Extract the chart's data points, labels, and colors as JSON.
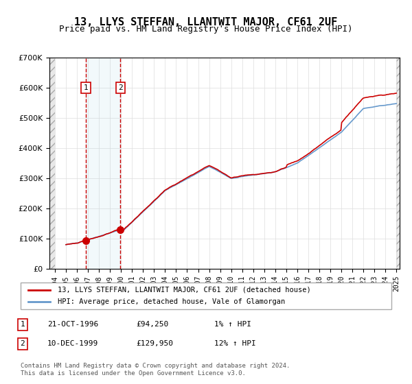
{
  "title": "13, LLYS STEFFAN, LLANTWIT MAJOR, CF61 2UF",
  "subtitle": "Price paid vs. HM Land Registry's House Price Index (HPI)",
  "legend_line1": "13, LLYS STEFFAN, LLANTWIT MAJOR, CF61 2UF (detached house)",
  "legend_line2": "HPI: Average price, detached house, Vale of Glamorgan",
  "table_row1": [
    "1",
    "21-OCT-1996",
    "£94,250",
    "1% ↑ HPI"
  ],
  "table_row2": [
    "2",
    "10-DEC-1999",
    "£129,950",
    "12% ↑ HPI"
  ],
  "footer": "Contains HM Land Registry data © Crown copyright and database right 2024.\nThis data is licensed under the Open Government Licence v3.0.",
  "price_color": "#cc0000",
  "hpi_color": "#6699cc",
  "transaction1_date": 1996.81,
  "transaction1_price": 94250,
  "transaction2_date": 1999.94,
  "transaction2_price": 129950,
  "xmin": 1994,
  "xmax": 2025,
  "ymin": 0,
  "ymax": 700000,
  "hatch_color": "#cccccc",
  "background_color": "#ffffff"
}
